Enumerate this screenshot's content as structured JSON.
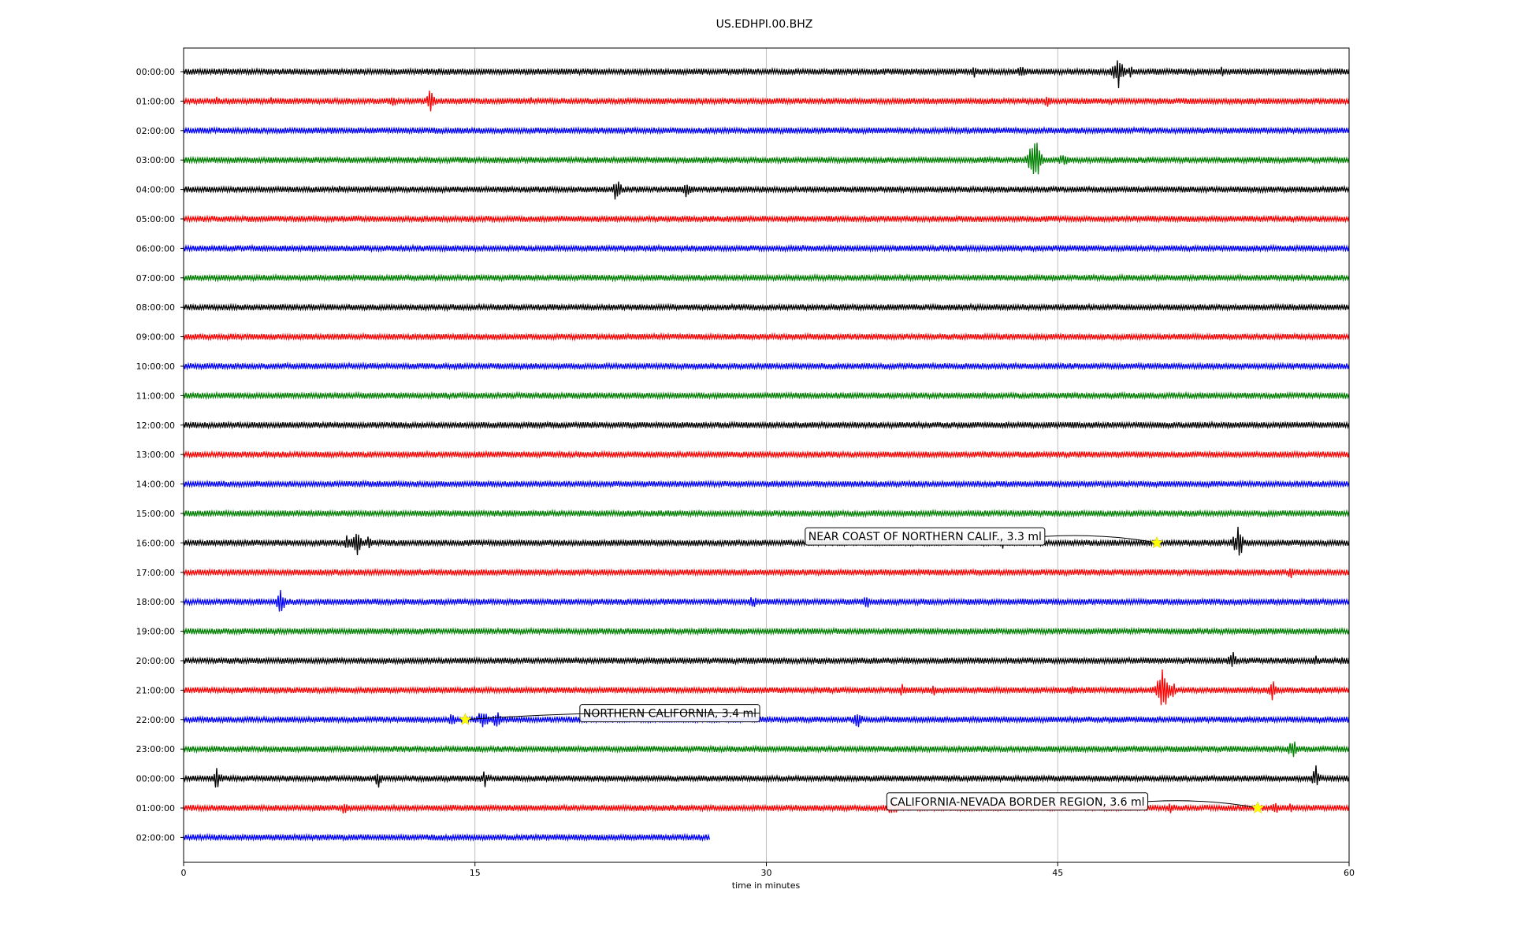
{
  "chart_data": {
    "type": "line",
    "title": "US.EDHPI.00.BHZ",
    "xlabel": "time in minutes",
    "ylabel": "",
    "xlim": [
      0,
      60
    ],
    "x_ticks": [
      "0",
      "15",
      "30",
      "45",
      "60"
    ],
    "grid": "vertical lines at 15, 30, 45",
    "colors": [
      "#000000",
      "#ff0000",
      "#0000ff",
      "#008000"
    ],
    "rows": [
      {
        "label": "00:00:00",
        "color": "#000000",
        "end_minute": 60,
        "events": [
          [
            40.7,
            8
          ],
          [
            43.2,
            14
          ],
          [
            48.1,
            28
          ],
          [
            48.8,
            10
          ],
          [
            53.5,
            9
          ]
        ]
      },
      {
        "label": "01:00:00",
        "color": "#ff0000",
        "end_minute": 60,
        "events": [
          [
            1.7,
            6
          ],
          [
            4.6,
            8
          ],
          [
            10.8,
            8
          ],
          [
            12.7,
            16
          ],
          [
            17.9,
            6
          ],
          [
            44.5,
            10
          ]
        ]
      },
      {
        "label": "02:00:00",
        "color": "#0000ff",
        "end_minute": 60,
        "events": [
          [
            7.7,
            7
          ],
          [
            43.9,
            5
          ]
        ]
      },
      {
        "label": "03:00:00",
        "color": "#008000",
        "end_minute": 60,
        "events": [
          [
            43.8,
            45
          ],
          [
            45.3,
            12
          ]
        ]
      },
      {
        "label": "04:00:00",
        "color": "#000000",
        "end_minute": 60,
        "events": [
          [
            8.0,
            8
          ],
          [
            22.3,
            20
          ],
          [
            25.9,
            14
          ]
        ]
      },
      {
        "label": "05:00:00",
        "color": "#ff0000",
        "end_minute": 60,
        "events": [
          [
            47.1,
            5
          ]
        ]
      },
      {
        "label": "06:00:00",
        "color": "#0000ff",
        "end_minute": 60,
        "events": [
          [
            31.9,
            5
          ]
        ]
      },
      {
        "label": "07:00:00",
        "color": "#008000",
        "end_minute": 60,
        "events": []
      },
      {
        "label": "08:00:00",
        "color": "#000000",
        "end_minute": 60,
        "events": []
      },
      {
        "label": "09:00:00",
        "color": "#ff0000",
        "end_minute": 60,
        "events": []
      },
      {
        "label": "10:00:00",
        "color": "#0000ff",
        "end_minute": 60,
        "events": []
      },
      {
        "label": "11:00:00",
        "color": "#008000",
        "end_minute": 60,
        "events": []
      },
      {
        "label": "12:00:00",
        "color": "#000000",
        "end_minute": 60,
        "events": []
      },
      {
        "label": "13:00:00",
        "color": "#ff0000",
        "end_minute": 60,
        "events": []
      },
      {
        "label": "14:00:00",
        "color": "#0000ff",
        "end_minute": 60,
        "events": []
      },
      {
        "label": "15:00:00",
        "color": "#008000",
        "end_minute": 60,
        "events": []
      },
      {
        "label": "16:00:00",
        "color": "#000000",
        "end_minute": 60,
        "events": [
          [
            8.4,
            10
          ],
          [
            8.9,
            22
          ],
          [
            9.5,
            10
          ],
          [
            42.1,
            10
          ],
          [
            43.0,
            6
          ],
          [
            54.3,
            28
          ]
        ]
      },
      {
        "label": "17:00:00",
        "color": "#ff0000",
        "end_minute": 60,
        "events": [
          [
            57.0,
            10
          ]
        ]
      },
      {
        "label": "18:00:00",
        "color": "#0000ff",
        "end_minute": 60,
        "events": [
          [
            5.0,
            20
          ],
          [
            29.3,
            10
          ],
          [
            35.1,
            14
          ]
        ]
      },
      {
        "label": "19:00:00",
        "color": "#008000",
        "end_minute": 60,
        "events": [
          [
            51.0,
            4
          ]
        ]
      },
      {
        "label": "20:00:00",
        "color": "#000000",
        "end_minute": 60,
        "events": [
          [
            54.0,
            14
          ],
          [
            58.2,
            10
          ],
          [
            59.7,
            8
          ]
        ]
      },
      {
        "label": "21:00:00",
        "color": "#ff0000",
        "end_minute": 60,
        "events": [
          [
            37.0,
            10
          ],
          [
            38.6,
            8
          ],
          [
            45.7,
            10
          ],
          [
            50.4,
            40
          ],
          [
            50.9,
            14
          ],
          [
            56.1,
            18
          ]
        ]
      },
      {
        "label": "22:00:00",
        "color": "#0000ff",
        "end_minute": 60,
        "events": [
          [
            13.8,
            10
          ],
          [
            15.4,
            20
          ],
          [
            16.1,
            14
          ],
          [
            34.7,
            14
          ]
        ]
      },
      {
        "label": "23:00:00",
        "color": "#008000",
        "end_minute": 60,
        "events": [
          [
            57.1,
            16
          ]
        ]
      },
      {
        "label": "00:00:00",
        "color": "#000000",
        "end_minute": 60,
        "events": [
          [
            1.7,
            16
          ],
          [
            10.0,
            14
          ],
          [
            15.5,
            12
          ],
          [
            58.3,
            18
          ]
        ]
      },
      {
        "label": "01:00:00",
        "color": "#ff0000",
        "end_minute": 60,
        "events": [
          [
            8.3,
            10
          ],
          [
            36.5,
            14
          ],
          [
            37.3,
            8
          ],
          [
            50.8,
            10
          ],
          [
            56.2,
            10
          ],
          [
            57.0,
            8
          ]
        ]
      },
      {
        "label": "02:00:00",
        "color": "#0000ff",
        "end_minute": 27.1,
        "events": []
      }
    ],
    "annotations": [
      {
        "text": "NEAR COAST OF NORTHERN CALIF., 3.3 ml",
        "row": 16,
        "minute": 50.1,
        "label_minute": 32.0,
        "label_row": 15.78
      },
      {
        "text": "NORTHERN CALIFORNIA, 3.4 ml",
        "row": 22,
        "minute": 14.5,
        "label_minute": 20.4,
        "label_row": 21.78
      },
      {
        "text": "CALIFORNIA-NEVADA BORDER REGION, 3.6 ml",
        "row": 25,
        "minute": 55.3,
        "label_minute": 36.2,
        "label_row": 24.78
      }
    ]
  }
}
